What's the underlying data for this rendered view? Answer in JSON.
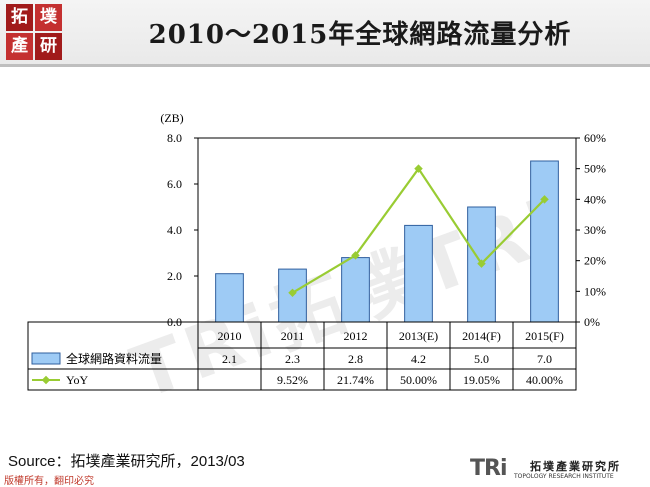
{
  "header": {
    "title": "2010～2015年全球網路流量分析",
    "logo_chars": [
      "拓",
      "墣",
      "產",
      "研"
    ]
  },
  "chart_data": {
    "type": "bar",
    "categories": [
      "2010",
      "2011",
      "2012",
      "2013(E)",
      "2014(F)",
      "2015(F)"
    ],
    "series": [
      {
        "name": "全球網路資料流量",
        "type": "bar",
        "axis": "left",
        "values": [
          2.1,
          2.3,
          2.8,
          4.2,
          5.0,
          7.0
        ],
        "table_values": [
          "2.1",
          "2.3",
          "2.8",
          "4.2",
          "5.0",
          "7.0"
        ]
      },
      {
        "name": "YoY",
        "type": "line",
        "axis": "right",
        "values": [
          null,
          9.52,
          21.74,
          50.0,
          19.05,
          40.0
        ],
        "table_values": [
          "",
          "9.52%",
          "21.74%",
          "50.00%",
          "19.05%",
          "40.00%"
        ]
      }
    ],
    "y_left": {
      "unit_label": "(ZB)",
      "ylim": [
        0,
        8
      ],
      "ticks": [
        "0.0",
        "2.0",
        "4.0",
        "6.0",
        "8.0"
      ]
    },
    "y_right": {
      "ylim": [
        0,
        60
      ],
      "ticks": [
        "0%",
        "10%",
        "20%",
        "30%",
        "40%",
        "50%",
        "60%"
      ]
    },
    "grid": false,
    "legend": "data-table",
    "colors": {
      "bar_fill": "#9ecbf5",
      "bar_stroke": "#2f5f9e",
      "line": "#99cc33"
    }
  },
  "footer": {
    "source": "Source：拓墣產業研究所，2013/03",
    "copyright": "版權所有，翻印必究",
    "brand_mark": "TRi",
    "brand_name": "拓墣產業研究所",
    "brand_sub": "TOPOLOGY RESEARCH INSTITUTE"
  }
}
